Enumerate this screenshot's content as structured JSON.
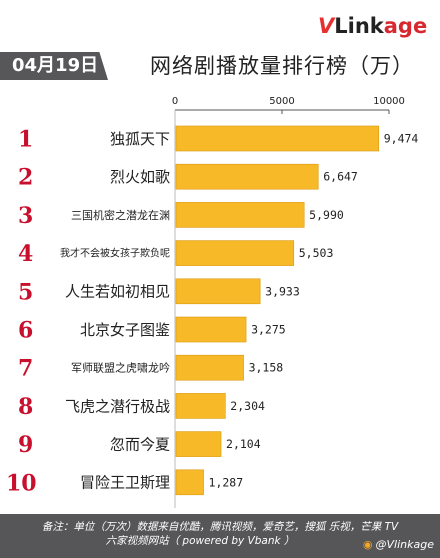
{
  "brand": {
    "prefix": "V",
    "name": "Link",
    "suffix": "age"
  },
  "date_tag": "04月19日",
  "title": "网络剧播放量排行榜（万）",
  "footer": {
    "line1": "备注：单位（万次）数据来自优酷，腾讯视频，爱奇艺，搜狐 乐视，芒果 TV",
    "line2": "六家视频网站（ powered by Vbank ）",
    "weibo": "@Vlinkage"
  },
  "colors": {
    "bar": "#f7b928",
    "rank": "#c8102e",
    "banner": "#57575a"
  },
  "chart_data": {
    "type": "bar",
    "orientation": "horizontal",
    "ranks": [
      "1",
      "2",
      "3",
      "4",
      "5",
      "6",
      "7",
      "8",
      "9",
      "10"
    ],
    "categories": [
      "独孤天下",
      "烈火如歌",
      "三国机密之潜龙在渊",
      "我才不会被女孩子欺负呢",
      "人生若如初相见",
      "北京女子图鉴",
      "军师联盟之虎啸龙吟",
      "飞虎之潜行极战",
      "忽而今夏",
      "冒险王卫斯理"
    ],
    "values": [
      9474,
      6647,
      5990,
      5503,
      3933,
      3275,
      3158,
      2304,
      2104,
      1287
    ],
    "value_labels": [
      "9,474",
      "6,647",
      "5,990",
      "5,503",
      "3,933",
      "3,275",
      "3,158",
      "2,304",
      "2,104",
      "1,287"
    ],
    "xlim": [
      0,
      10000
    ],
    "ticks": [
      "0",
      "5000",
      "10000"
    ],
    "tick_values": [
      0,
      5000,
      10000
    ],
    "grid": false,
    "legend": "none"
  }
}
